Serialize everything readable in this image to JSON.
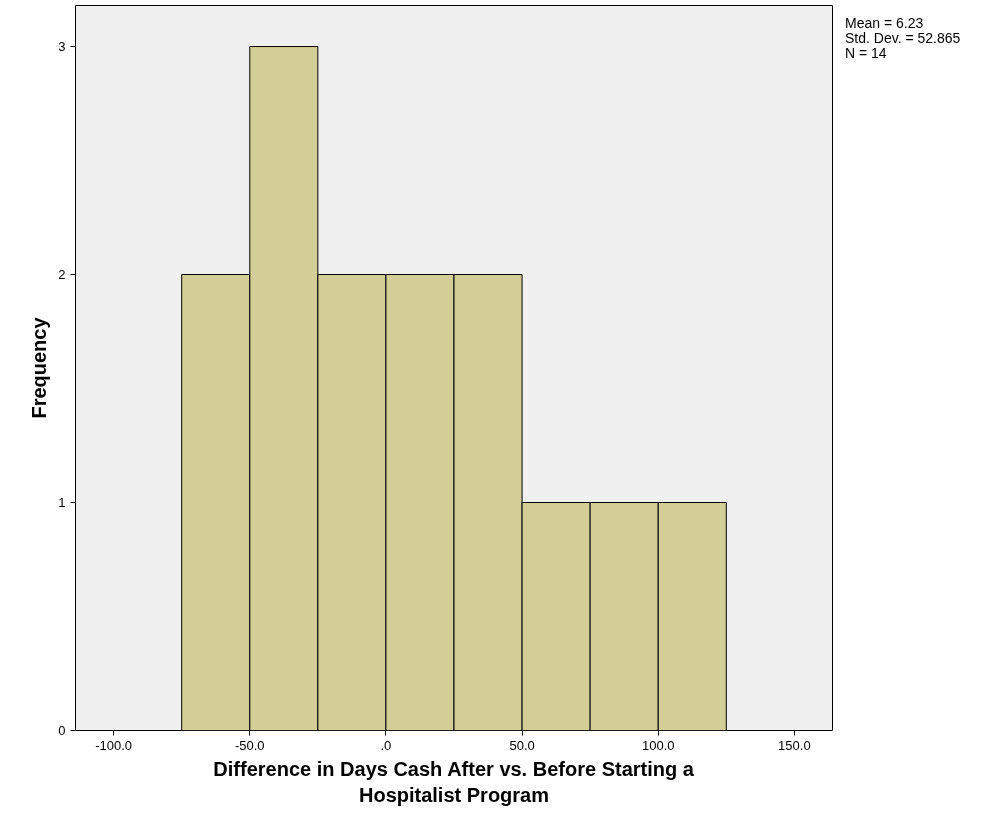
{
  "chart_data": {
    "type": "histogram",
    "xlabel": "Difference in Days Cash After vs. Before Starting a\nHospitalist Program",
    "ylabel": "Frequency",
    "bins": [
      -75,
      -50,
      -25,
      0,
      25,
      50,
      75,
      100,
      125
    ],
    "values": [
      2,
      3,
      2,
      2,
      2,
      1,
      1,
      1
    ],
    "color": "#d3ce97",
    "xlim": [
      -114,
      164
    ],
    "ylim": [
      0,
      3.18
    ],
    "xticks": [
      {
        "value": -100,
        "label": "-100.0"
      },
      {
        "value": -50,
        "label": "-50.0"
      },
      {
        "value": 0,
        "label": ".0"
      },
      {
        "value": 50,
        "label": "50.0"
      },
      {
        "value": 100,
        "label": "100.0"
      },
      {
        "value": 150,
        "label": "150.0"
      }
    ],
    "yticks": [
      0,
      1,
      2,
      3
    ],
    "annotations": [
      "Mean = 6.23",
      "Std. Dev. = 52.865",
      "N = 14"
    ],
    "grid": false
  }
}
